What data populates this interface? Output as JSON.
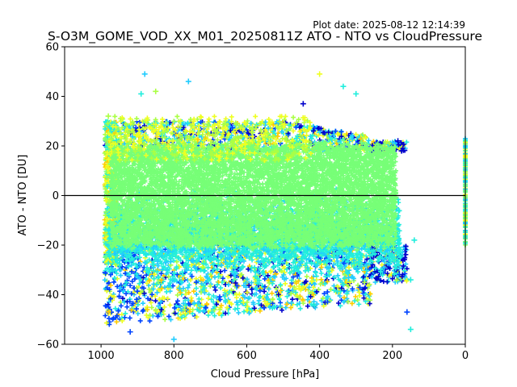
{
  "chart_data": {
    "type": "scatter",
    "title": "S-O3M_GOME_VOD_XX_M01_20250811Z ATO - NTO vs CloudPressure",
    "plot_date": "Plot date: 2025-08-12 12:14:39",
    "xlabel": "Cloud Pressure [hPa]",
    "ylabel": "ATO - NTO [DU]",
    "xlim": [
      1100,
      0
    ],
    "ylim": [
      -60,
      60
    ],
    "x_ticks": [
      1000,
      800,
      600,
      400,
      200,
      0
    ],
    "y_ticks": [
      -60,
      -40,
      -20,
      0,
      20,
      40,
      60
    ],
    "reference_line_y": 0,
    "grid": false,
    "marker": "+",
    "colors": {
      "core": "#77ff77",
      "cyan": "#22eedd",
      "lightblue": "#22ccff",
      "blue": "#0044ff",
      "darkblue": "#0000cc",
      "yellow": "#eeff22",
      "orange": "#ffcc00",
      "lime": "#aaff44"
    },
    "point_cloud": {
      "main_x_range": [
        160,
        990
      ],
      "main_core_y_range": [
        -20,
        20
      ],
      "main_full_y_range": [
        -57,
        35
      ],
      "edge_column_x": 0,
      "edge_column_y_range": [
        -20,
        23
      ]
    },
    "outliers": [
      {
        "x": 880,
        "y": 49,
        "color": "lightblue"
      },
      {
        "x": 760,
        "y": 46,
        "color": "lightblue"
      },
      {
        "x": 400,
        "y": 49,
        "color": "yellow"
      },
      {
        "x": 335,
        "y": 44,
        "color": "cyan"
      },
      {
        "x": 300,
        "y": 41,
        "color": "cyan"
      },
      {
        "x": 850,
        "y": 42,
        "color": "lime"
      },
      {
        "x": 890,
        "y": 41,
        "color": "cyan"
      },
      {
        "x": 920,
        "y": -55,
        "color": "blue"
      },
      {
        "x": 800,
        "y": -58,
        "color": "lightblue"
      },
      {
        "x": 150,
        "y": -54,
        "color": "cyan"
      },
      {
        "x": 160,
        "y": -47,
        "color": "blue"
      },
      {
        "x": 150,
        "y": -34,
        "color": "cyan"
      },
      {
        "x": 140,
        "y": -18,
        "color": "cyan"
      },
      {
        "x": 185,
        "y": 22,
        "color": "darkblue"
      },
      {
        "x": 175,
        "y": 18,
        "color": "darkblue"
      },
      {
        "x": 445,
        "y": 37,
        "color": "darkblue"
      },
      {
        "x": 980,
        "y": 32,
        "color": "lime"
      }
    ]
  }
}
